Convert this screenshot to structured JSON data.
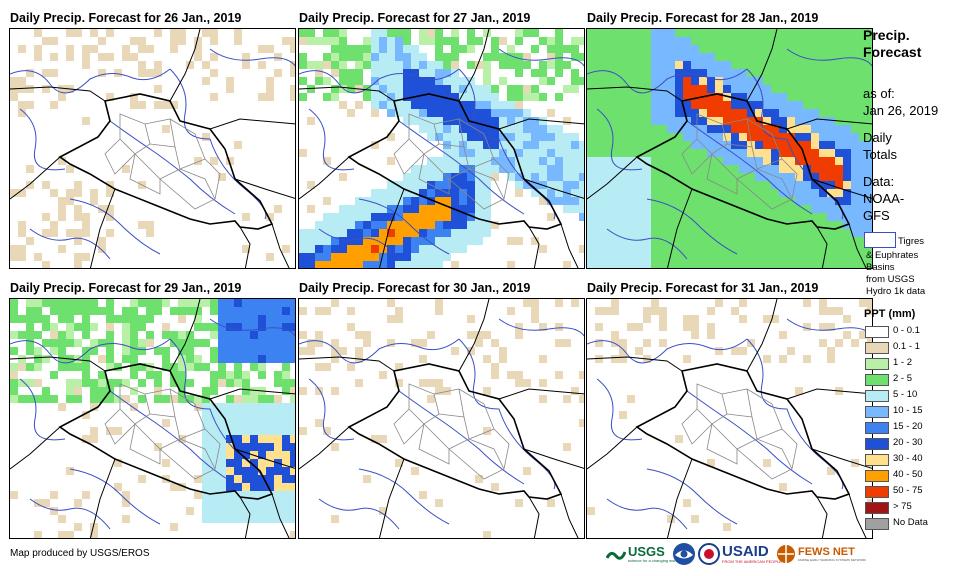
{
  "panels": [
    {
      "title": "Daily Precip. Forecast for 26 Jan., 2019",
      "intensity": 0
    },
    {
      "title": "Daily Precip. Forecast for 27 Jan., 2019",
      "intensity": 2
    },
    {
      "title": "Daily Precip. Forecast for 28 Jan., 2019",
      "intensity": 3
    },
    {
      "title": "Daily Precip. Forecast for 29 Jan., 2019",
      "intensity": 1
    },
    {
      "title": "Daily Precip. Forecast for 30 Jan., 2019",
      "intensity": 0
    },
    {
      "title": "Daily Precip. Forecast for 31 Jan., 2019",
      "intensity": 0
    }
  ],
  "side": {
    "title_line1": "Precip.",
    "title_line2": "Forecast",
    "asof_label": "as of:",
    "asof_date": "Jan 26, 2019",
    "daily1": "Daily",
    "daily2": "Totals",
    "data1": "Data:",
    "data2": "NOAA-",
    "data3": "GFS",
    "basin_label1": "Tigres",
    "basin_label2": "& Euphrates",
    "basin_label3": "Basins",
    "basin_label4": "from USGS",
    "basin_label5": "Hydro 1k data",
    "ppt_title": "PPT (mm)"
  },
  "legend": [
    {
      "label": "0 - 0.1",
      "color": "#ffffff"
    },
    {
      "label": "0.1 - 1",
      "color": "#e8d8b8"
    },
    {
      "label": "1 - 2",
      "color": "#b9f0a8"
    },
    {
      "label": "2 - 5",
      "color": "#6ee06e"
    },
    {
      "label": "5 - 10",
      "color": "#b8ecf4"
    },
    {
      "label": "10 - 15",
      "color": "#78b8ff"
    },
    {
      "label": "15 - 20",
      "color": "#3c82f0"
    },
    {
      "label": "20 - 30",
      "color": "#1e50d8"
    },
    {
      "label": "30 - 40",
      "color": "#ffe08c"
    },
    {
      "label": "40 - 50",
      "color": "#ffa000"
    },
    {
      "label": "50 - 75",
      "color": "#f03c00"
    },
    {
      "label": "> 75",
      "color": "#a01414"
    },
    {
      "label": "No Data",
      "color": "#a0a0a0"
    }
  ],
  "footer": {
    "credit": "Map produced by USGS/EROS"
  },
  "logos": {
    "usgs": "USGS",
    "usgs_tag": "science for a changing world",
    "usaid": "USAID",
    "usaid_tag": "FROM THE AMERICAN PEOPLE",
    "fews": "FEWS NET",
    "fews_tag": "FAMINE EARLY WARNING SYSTEMS NETWORK"
  }
}
